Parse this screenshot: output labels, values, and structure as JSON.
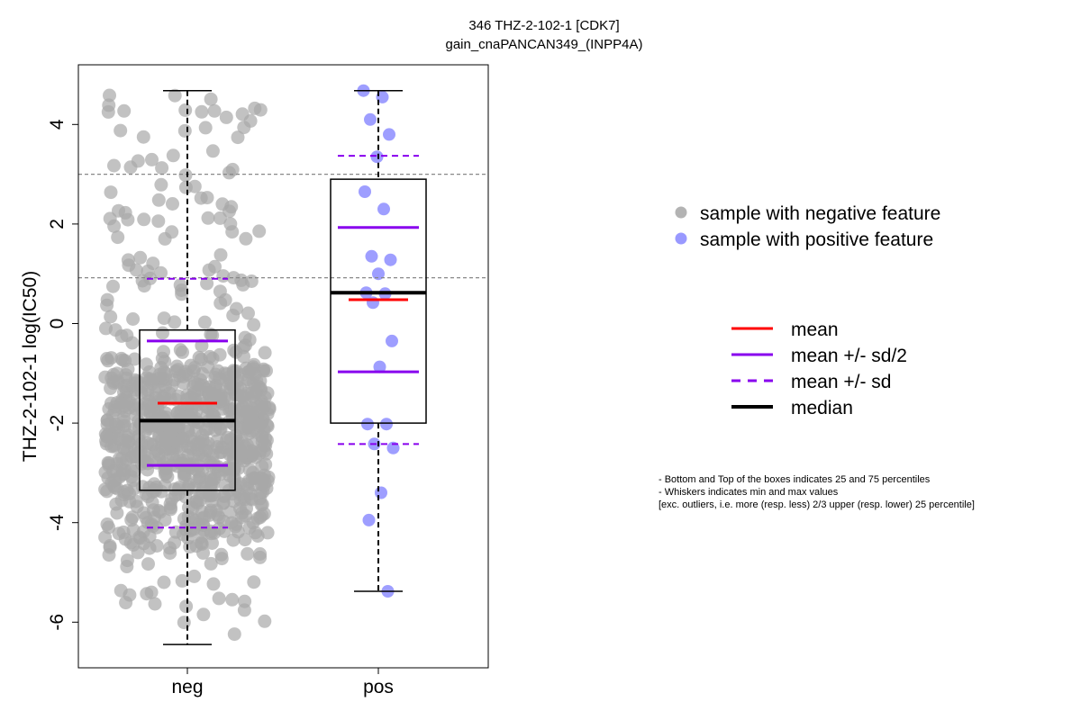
{
  "chart_data": {
    "type": "box",
    "title_line1": "346 THZ-2-102-1 [CDK7]",
    "title_line2": "gain_cnaPANCAN349_(INPP4A)",
    "ylabel": "THZ-2-102-1 log(IC50)",
    "xlabel": "",
    "categories": [
      "neg",
      "pos"
    ],
    "ylim": [
      -6.8,
      5.0
    ],
    "yticks": [
      -6,
      -4,
      -2,
      0,
      2,
      4
    ],
    "ytick_labels": [
      "-6",
      "-4",
      "-2",
      "0",
      "2",
      "4"
    ],
    "reference_lines": [
      3.0,
      0.92
    ],
    "groups": [
      {
        "name": "neg",
        "color": "#a8a8a8",
        "q1": -3.35,
        "median": -1.95,
        "q3": -0.13,
        "whisker_low": -6.45,
        "whisker_high": 4.68,
        "mean": -1.6,
        "half_sd_low": -2.85,
        "half_sd_high": -0.35,
        "sd_low": -4.1,
        "sd_high": 0.9,
        "n_points": 920
      },
      {
        "name": "pos",
        "color": "#9999ff",
        "q1": -2.0,
        "median": 0.62,
        "q3": 2.9,
        "whisker_low": -5.38,
        "whisker_high": 4.68,
        "mean": 0.48,
        "half_sd_low": -0.97,
        "half_sd_high": 1.93,
        "sd_low": -2.42,
        "sd_high": 3.37,
        "points": [
          4.68,
          4.55,
          4.1,
          3.8,
          3.35,
          2.65,
          2.3,
          1.35,
          1.28,
          1.0,
          0.62,
          0.6,
          0.42,
          -0.35,
          -0.87,
          -2.02,
          -2.02,
          -2.42,
          -2.5,
          -3.4,
          -3.95,
          -5.38
        ]
      }
    ],
    "legend_points": [
      {
        "label": "sample with negative feature",
        "color": "#b3b3b3"
      },
      {
        "label": "sample with positive feature",
        "color": "#9999ff"
      }
    ],
    "legend_lines": [
      {
        "label": "mean",
        "color": "#ff0000",
        "style": "solid"
      },
      {
        "label": "mean +/- sd/2",
        "color": "#8800ee",
        "style": "solid"
      },
      {
        "label": "mean +/- sd",
        "color": "#8800ee",
        "style": "dashed"
      },
      {
        "label": "median",
        "color": "#000000",
        "style": "solid-thick"
      }
    ],
    "notes": [
      "- Bottom and Top of the boxes indicates 25 and 75 percentiles",
      "- Whiskers indicates min and max values",
      "[exc. outliers, i.e. more (resp. less) 2/3 upper (resp. lower) 25 percentile]"
    ]
  }
}
